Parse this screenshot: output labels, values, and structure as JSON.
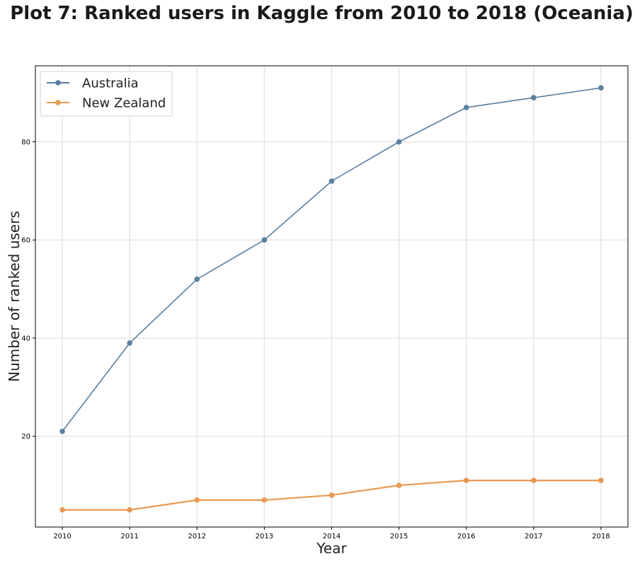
{
  "chart_data": {
    "type": "line",
    "title": "Plot 7: Ranked users in Kaggle from 2010 to 2018 (Oceania)",
    "xlabel": "Year",
    "ylabel": "Number of ranked users",
    "x": [
      2010,
      2011,
      2012,
      2013,
      2014,
      2015,
      2016,
      2017,
      2018
    ],
    "series": [
      {
        "name": "Australia",
        "color": "#5b7f9f",
        "values": [
          21,
          39,
          52,
          60,
          72,
          80,
          87,
          89,
          91
        ]
      },
      {
        "name": "New Zealand",
        "color": "#e89a53",
        "values": [
          5,
          5,
          7,
          7,
          8,
          10,
          11,
          11,
          11
        ]
      }
    ],
    "yticks": [
      20,
      40,
      60,
      80
    ],
    "ylim": [
      1.5,
      95.5
    ],
    "xlim": [
      2009.6,
      2018.4
    ],
    "grid": true,
    "legend": "top-left"
  }
}
